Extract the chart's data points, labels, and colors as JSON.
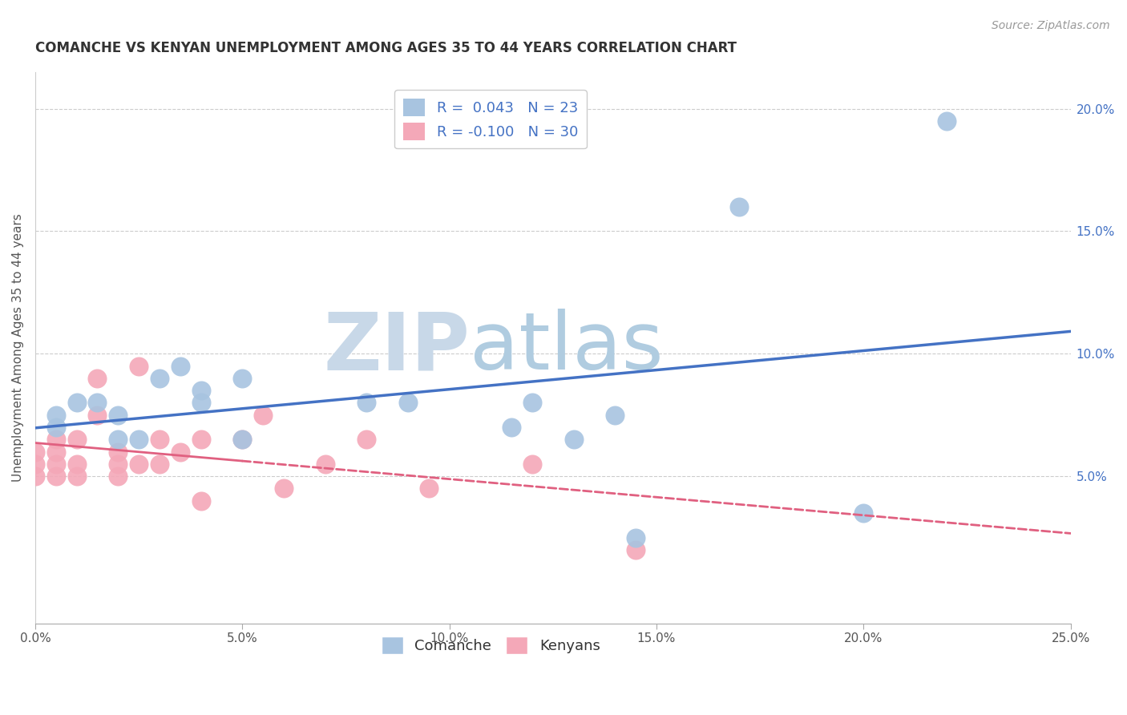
{
  "title": "COMANCHE VS KENYAN UNEMPLOYMENT AMONG AGES 35 TO 44 YEARS CORRELATION CHART",
  "source": "Source: ZipAtlas.com",
  "ylabel": "Unemployment Among Ages 35 to 44 years",
  "xlim": [
    0.0,
    0.25
  ],
  "ylim": [
    -0.01,
    0.215
  ],
  "xticks": [
    0.0,
    0.05,
    0.1,
    0.15,
    0.2,
    0.25
  ],
  "yticks": [
    0.05,
    0.1,
    0.15,
    0.2
  ],
  "ytick_labels": [
    "5.0%",
    "10.0%",
    "15.0%",
    "20.0%"
  ],
  "xtick_labels": [
    "0.0%",
    "5.0%",
    "10.0%",
    "15.0%",
    "20.0%",
    "25.0%"
  ],
  "comanche_R": 0.043,
  "comanche_N": 23,
  "kenyan_R": -0.1,
  "kenyan_N": 30,
  "comanche_color": "#a8c4e0",
  "kenyan_color": "#f4a8b8",
  "trend_comanche_color": "#4472c4",
  "trend_kenyan_color": "#e06080",
  "watermark_ZIP_color": "#c8d8e8",
  "watermark_atlas_color": "#b0cce0",
  "background_color": "#ffffff",
  "comanche_x": [
    0.005,
    0.005,
    0.01,
    0.015,
    0.02,
    0.02,
    0.025,
    0.03,
    0.035,
    0.04,
    0.04,
    0.05,
    0.05,
    0.08,
    0.09,
    0.12,
    0.14,
    0.145,
    0.17,
    0.2,
    0.22,
    0.115,
    0.13
  ],
  "comanche_y": [
    0.07,
    0.075,
    0.08,
    0.08,
    0.075,
    0.065,
    0.065,
    0.09,
    0.095,
    0.085,
    0.08,
    0.09,
    0.065,
    0.08,
    0.08,
    0.08,
    0.075,
    0.025,
    0.16,
    0.035,
    0.195,
    0.07,
    0.065
  ],
  "kenyan_x": [
    0.0,
    0.0,
    0.0,
    0.005,
    0.005,
    0.005,
    0.005,
    0.01,
    0.01,
    0.01,
    0.015,
    0.015,
    0.02,
    0.02,
    0.02,
    0.025,
    0.025,
    0.03,
    0.03,
    0.035,
    0.04,
    0.04,
    0.05,
    0.055,
    0.06,
    0.07,
    0.08,
    0.095,
    0.12,
    0.145
  ],
  "kenyan_y": [
    0.06,
    0.055,
    0.05,
    0.065,
    0.06,
    0.055,
    0.05,
    0.065,
    0.055,
    0.05,
    0.09,
    0.075,
    0.06,
    0.055,
    0.05,
    0.095,
    0.055,
    0.065,
    0.055,
    0.06,
    0.065,
    0.04,
    0.065,
    0.075,
    0.045,
    0.055,
    0.065,
    0.045,
    0.055,
    0.02
  ],
  "kenyan_trend_solid_end": 0.05,
  "legend_fontsize": 13,
  "title_fontsize": 12,
  "axis_label_fontsize": 11,
  "tick_fontsize": 11
}
